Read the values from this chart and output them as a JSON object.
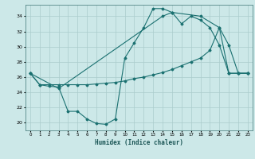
{
  "xlabel": "Humidex (Indice chaleur)",
  "background_color": "#cce8e8",
  "grid_color": "#aacccc",
  "line_color": "#1a7070",
  "xlim": [
    -0.5,
    23.5
  ],
  "ylim": [
    19.0,
    35.5
  ],
  "xticks": [
    0,
    1,
    2,
    3,
    4,
    5,
    6,
    7,
    8,
    9,
    10,
    11,
    12,
    13,
    14,
    15,
    16,
    17,
    18,
    19,
    20,
    21,
    22,
    23
  ],
  "yticks": [
    20,
    22,
    24,
    26,
    28,
    30,
    32,
    34
  ],
  "series1_x": [
    0,
    1,
    2,
    3,
    4,
    5,
    6,
    7,
    8,
    9,
    10,
    11,
    12,
    13,
    14,
    15,
    16,
    17,
    18,
    19,
    20,
    21,
    22,
    23
  ],
  "series1_y": [
    26.5,
    25.0,
    24.8,
    24.7,
    21.5,
    21.5,
    20.5,
    19.9,
    19.8,
    20.5,
    28.5,
    30.5,
    32.5,
    35.0,
    35.0,
    34.5,
    33.0,
    34.0,
    33.5,
    32.5,
    30.2,
    26.5,
    26.5,
    26.5
  ],
  "series2_x": [
    0,
    1,
    2,
    3,
    4,
    5,
    6,
    7,
    8,
    9,
    10,
    11,
    12,
    13,
    14,
    15,
    16,
    17,
    18,
    19,
    20,
    21,
    22,
    23
  ],
  "series2_y": [
    26.5,
    25.0,
    25.0,
    25.0,
    25.0,
    25.0,
    25.0,
    25.1,
    25.2,
    25.3,
    25.5,
    25.8,
    26.0,
    26.3,
    26.6,
    27.0,
    27.5,
    28.0,
    28.5,
    29.5,
    32.5,
    26.5,
    26.5,
    26.5
  ],
  "series3_x": [
    0,
    3,
    14,
    15,
    18,
    20,
    21,
    22,
    23
  ],
  "series3_y": [
    26.5,
    24.5,
    34.0,
    34.5,
    34.0,
    32.5,
    30.2,
    26.5,
    26.5
  ]
}
